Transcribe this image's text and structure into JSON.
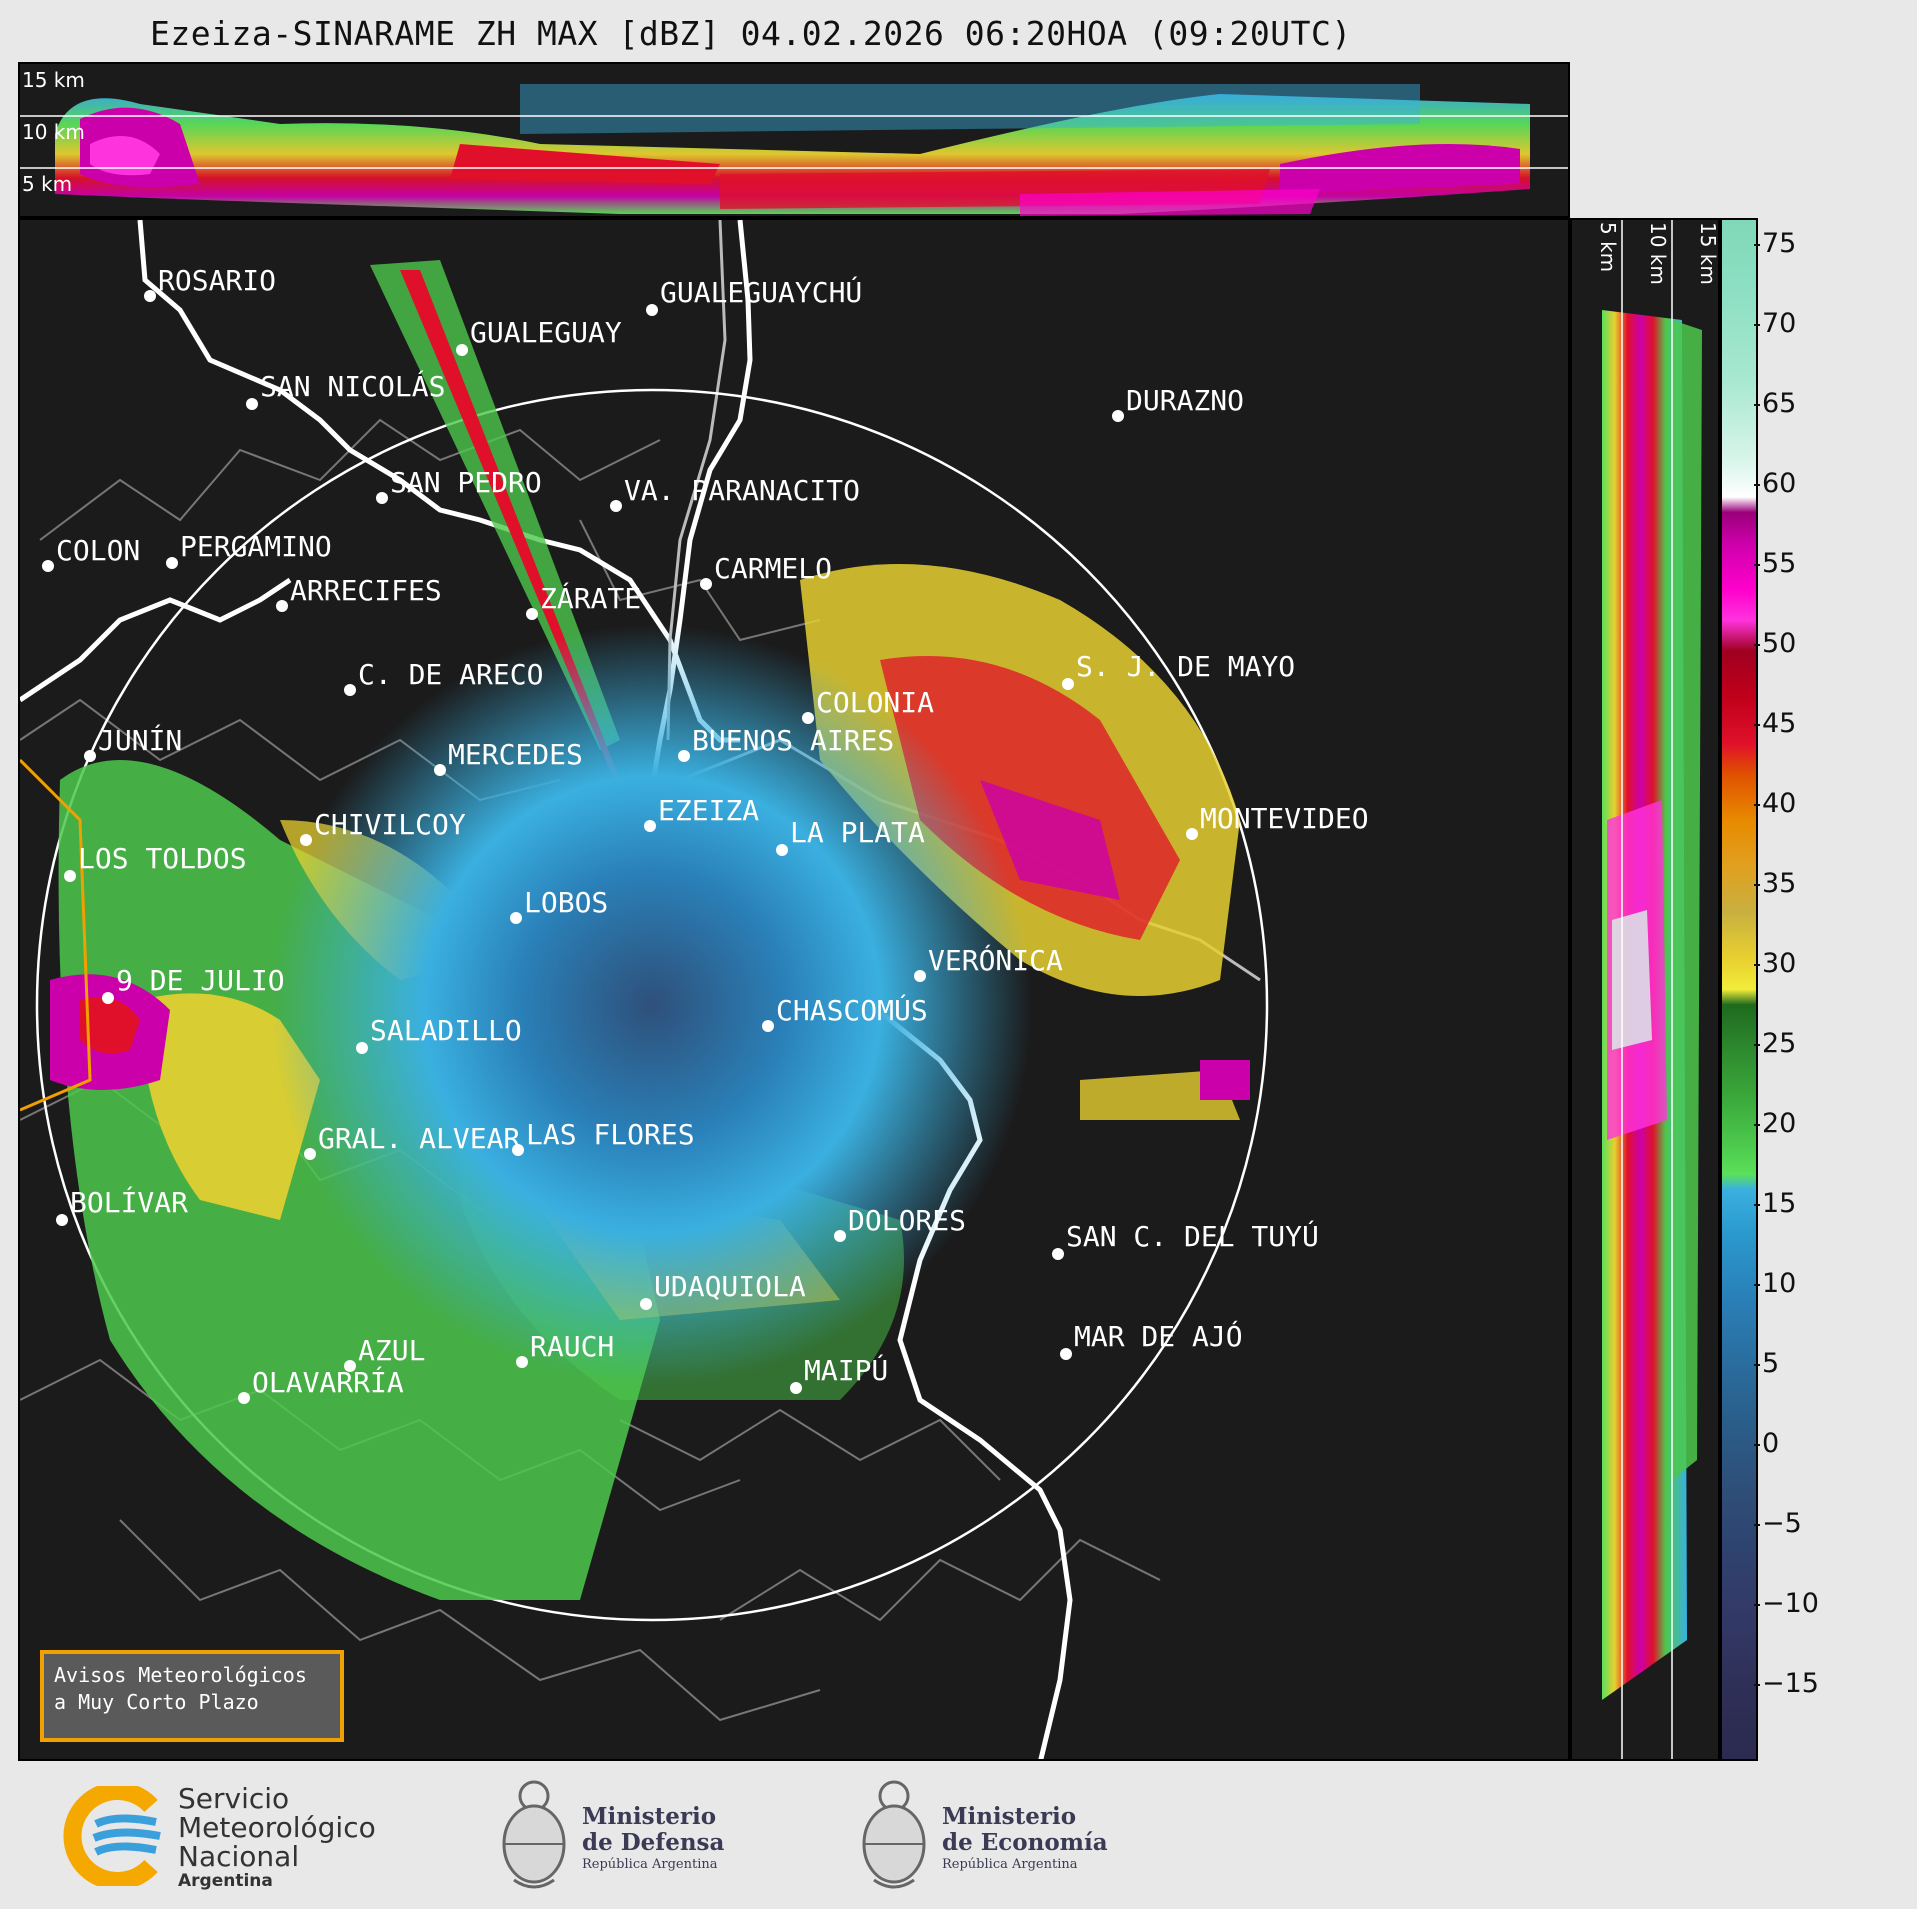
{
  "title": "Ezeiza-SINARAME ZH MAX [dBZ] 04.02.2026 06:20HOA (09:20UTC)",
  "top_panel": {
    "km_labels": [
      "15 km",
      "10 km",
      "5 km"
    ]
  },
  "side_panel": {
    "km_labels": [
      "5 km",
      "10 km",
      "15 km"
    ]
  },
  "colorbar": {
    "unit": "dBZ",
    "ticks": [
      "75",
      "70",
      "65",
      "60",
      "55",
      "50",
      "45",
      "40",
      "35",
      "30",
      "25",
      "20",
      "15",
      "10",
      "5",
      "0",
      "−5",
      "−10",
      "−15"
    ]
  },
  "cities": [
    {
      "name": "ROSARIO"
    },
    {
      "name": "GUALEGUAYCHÚ"
    },
    {
      "name": "GUALEGUAY"
    },
    {
      "name": "SAN NICOLÁS"
    },
    {
      "name": "DURAZNO"
    },
    {
      "name": "SAN PEDRO"
    },
    {
      "name": "VA. PARANACITO"
    },
    {
      "name": "COLON"
    },
    {
      "name": "PERGAMINO"
    },
    {
      "name": "CARMELO"
    },
    {
      "name": "ARRECIFES"
    },
    {
      "name": "ZÁRATE"
    },
    {
      "name": "C. DE ARECO"
    },
    {
      "name": "S. J. DE MAYO"
    },
    {
      "name": "COLONIA"
    },
    {
      "name": "JUNÍN"
    },
    {
      "name": "BUENOS AIRES"
    },
    {
      "name": "MERCEDES"
    },
    {
      "name": "EZEIZA"
    },
    {
      "name": "MONTEVIDEO"
    },
    {
      "name": "CHIVILCOY"
    },
    {
      "name": "LA PLATA"
    },
    {
      "name": "LOS TOLDOS"
    },
    {
      "name": "LOBOS"
    },
    {
      "name": "VERÓNICA"
    },
    {
      "name": "9 DE JULIO"
    },
    {
      "name": "CHASCOMÚS"
    },
    {
      "name": "SALADILLO"
    },
    {
      "name": "GRAL. ALVEAR"
    },
    {
      "name": "LAS FLORES"
    },
    {
      "name": "BOLÍVAR"
    },
    {
      "name": "DOLORES"
    },
    {
      "name": "SAN C. DEL TUYÚ"
    },
    {
      "name": "UDAQUIOLA"
    },
    {
      "name": "MAR DE AJÓ"
    },
    {
      "name": "AZUL"
    },
    {
      "name": "RAUCH"
    },
    {
      "name": "OLAVARRÍA"
    },
    {
      "name": "MAIPÚ"
    }
  ],
  "avisos": {
    "line1": "Avisos Meteorológicos",
    "line2": "a Muy Corto Plazo"
  },
  "logos": {
    "smn": {
      "line1": "Servicio",
      "line2": "Meteorológico",
      "line3": "Nacional",
      "line4": "Argentina"
    },
    "defensa": {
      "line1": "Ministerio",
      "line2": "de Defensa",
      "line3": "República Argentina"
    },
    "economia": {
      "line1": "Ministerio",
      "line2": "de Economía",
      "line3": "República Argentina"
    }
  }
}
